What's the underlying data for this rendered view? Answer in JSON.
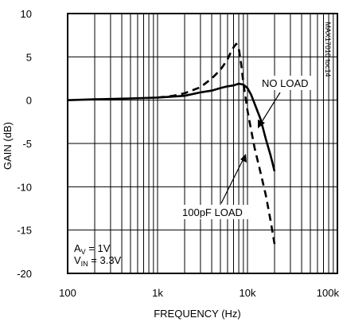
{
  "chart_data": {
    "type": "line",
    "title": "",
    "xlabel": "FREQUENCY (Hz)",
    "ylabel": "GAIN (dB)",
    "xscale": "log",
    "xlim": [
      100,
      100000
    ],
    "ylim": [
      -20,
      10
    ],
    "grid": true,
    "x_tick_labels": [
      "100",
      "1k",
      "10k",
      "100k"
    ],
    "y_tick_labels": [
      "10",
      "5",
      "0",
      "-5",
      "-10",
      "-15",
      "-20"
    ],
    "side_label": "MAX17010 toc14",
    "conditions": {
      "av_main": "A",
      "av_sub": "V",
      "av_value": " = 1V",
      "vin_main": "V",
      "vin_sub": "IN",
      "vin_value": " = 3.3V"
    },
    "series": [
      {
        "name": "NO LOAD",
        "style": "solid",
        "x": [
          100,
          200,
          500,
          1000,
          2000,
          3000,
          4000,
          5000,
          6000,
          7000,
          8000,
          9000,
          10000,
          11000,
          12000,
          14000,
          16000,
          18000,
          20000
        ],
        "y": [
          0.0,
          0.1,
          0.2,
          0.3,
          0.5,
          0.9,
          1.1,
          1.4,
          1.6,
          1.7,
          1.9,
          1.8,
          1.4,
          0.6,
          -0.4,
          -2.2,
          -4.5,
          -6.3,
          -8.2
        ]
      },
      {
        "name": "100pF LOAD",
        "style": "dashed",
        "x": [
          1000,
          1500,
          2000,
          3000,
          4000,
          5000,
          6000,
          6500,
          7000,
          7500,
          8000,
          8500,
          9000,
          10000,
          11000,
          12000,
          14000,
          16000,
          18000,
          20000
        ],
        "y": [
          0.3,
          0.5,
          0.8,
          1.5,
          2.5,
          3.5,
          4.7,
          5.5,
          6.1,
          6.5,
          6.0,
          4.2,
          2.0,
          -1.2,
          -3.5,
          -5.5,
          -8.4,
          -11.0,
          -13.8,
          -16.6
        ]
      }
    ],
    "annotations": [
      {
        "text": "NO LOAD",
        "series": 0
      },
      {
        "text": "100pF LOAD",
        "series": 1
      }
    ]
  }
}
